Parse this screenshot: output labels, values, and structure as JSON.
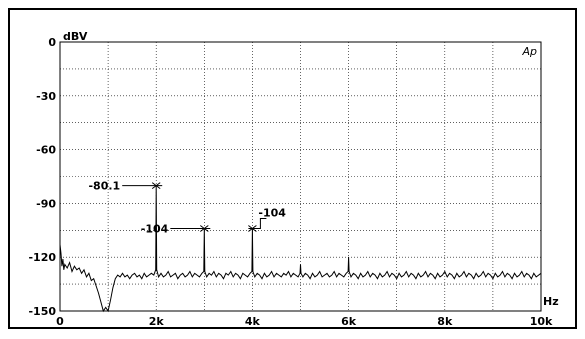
{
  "chart_data": {
    "type": "line",
    "ylabel": "dBV",
    "xlabel": "Hz",
    "logo": "Ap",
    "xlim": [
      0,
      10000
    ],
    "ylim": [
      -150,
      0
    ],
    "grid": true,
    "x_ticks": [
      {
        "value": 0,
        "label": "0"
      },
      {
        "value": 2000,
        "label": "2k"
      },
      {
        "value": 4000,
        "label": "4k"
      },
      {
        "value": 6000,
        "label": "6k"
      },
      {
        "value": 8000,
        "label": "8k"
      },
      {
        "value": 10000,
        "label": "10k"
      }
    ],
    "x_grid_step": 1000,
    "y_ticks": [
      {
        "value": 0,
        "label": "0"
      },
      {
        "value": -30,
        "label": "-30"
      },
      {
        "value": -60,
        "label": "-60"
      },
      {
        "value": -90,
        "label": "-90"
      },
      {
        "value": -120,
        "label": "-120"
      },
      {
        "value": -150,
        "label": "-150"
      }
    ],
    "y_grid_step": 15,
    "annotations": [
      {
        "x": 2000,
        "y": -80.1,
        "label": "-80.1",
        "side": "left"
      },
      {
        "x": 3000,
        "y": -104,
        "label": "-104",
        "side": "left"
      },
      {
        "x": 4000,
        "y": -104,
        "label": "-104",
        "side": "right"
      }
    ],
    "series": [
      {
        "color": "#000000",
        "points": [
          [
            0,
            -113
          ],
          [
            20,
            -118
          ],
          [
            40,
            -125
          ],
          [
            60,
            -121
          ],
          [
            80,
            -127
          ],
          [
            100,
            -124
          ],
          [
            150,
            -126
          ],
          [
            200,
            -123
          ],
          [
            250,
            -128
          ],
          [
            300,
            -125
          ],
          [
            350,
            -127
          ],
          [
            400,
            -126
          ],
          [
            450,
            -129
          ],
          [
            500,
            -127
          ],
          [
            550,
            -131
          ],
          [
            600,
            -129
          ],
          [
            650,
            -133
          ],
          [
            700,
            -132
          ],
          [
            750,
            -136
          ],
          [
            800,
            -140
          ],
          [
            850,
            -145
          ],
          [
            900,
            -150
          ],
          [
            950,
            -148
          ],
          [
            1000,
            -150
          ],
          [
            1050,
            -144
          ],
          [
            1100,
            -137
          ],
          [
            1150,
            -132
          ],
          [
            1200,
            -130
          ],
          [
            1250,
            -131
          ],
          [
            1300,
            -129
          ],
          [
            1350,
            -131
          ],
          [
            1400,
            -130
          ],
          [
            1450,
            -132
          ],
          [
            1500,
            -130
          ],
          [
            1550,
            -129
          ],
          [
            1600,
            -131
          ],
          [
            1650,
            -130
          ],
          [
            1700,
            -132
          ],
          [
            1750,
            -129
          ],
          [
            1800,
            -131
          ],
          [
            1850,
            -130
          ],
          [
            1900,
            -129
          ],
          [
            1950,
            -130
          ],
          [
            1990,
            -127
          ],
          [
            2000,
            -80.1
          ],
          [
            2010,
            -127
          ],
          [
            2050,
            -131
          ],
          [
            2100,
            -129
          ],
          [
            2150,
            -131
          ],
          [
            2200,
            -130
          ],
          [
            2250,
            -128
          ],
          [
            2300,
            -131
          ],
          [
            2350,
            -130
          ],
          [
            2400,
            -129
          ],
          [
            2450,
            -132
          ],
          [
            2500,
            -130
          ],
          [
            2550,
            -129
          ],
          [
            2600,
            -131
          ],
          [
            2650,
            -130
          ],
          [
            2700,
            -128
          ],
          [
            2750,
            -131
          ],
          [
            2800,
            -129
          ],
          [
            2850,
            -130
          ],
          [
            2900,
            -131
          ],
          [
            2950,
            -129
          ],
          [
            2990,
            -128
          ],
          [
            3000,
            -104
          ],
          [
            3010,
            -128
          ],
          [
            3050,
            -131
          ],
          [
            3100,
            -129
          ],
          [
            3150,
            -130
          ],
          [
            3200,
            -128
          ],
          [
            3250,
            -131
          ],
          [
            3300,
            -129
          ],
          [
            3350,
            -130
          ],
          [
            3400,
            -132
          ],
          [
            3450,
            -129
          ],
          [
            3500,
            -130
          ],
          [
            3550,
            -128
          ],
          [
            3600,
            -131
          ],
          [
            3650,
            -129
          ],
          [
            3700,
            -130
          ],
          [
            3750,
            -132
          ],
          [
            3800,
            -129
          ],
          [
            3850,
            -130
          ],
          [
            3900,
            -131
          ],
          [
            3950,
            -129
          ],
          [
            3990,
            -128
          ],
          [
            4000,
            -104
          ],
          [
            4010,
            -128
          ],
          [
            4050,
            -131
          ],
          [
            4100,
            -129
          ],
          [
            4150,
            -130
          ],
          [
            4200,
            -132
          ],
          [
            4250,
            -129
          ],
          [
            4300,
            -131
          ],
          [
            4350,
            -130
          ],
          [
            4400,
            -128
          ],
          [
            4450,
            -131
          ],
          [
            4500,
            -129
          ],
          [
            4550,
            -130
          ],
          [
            4600,
            -131
          ],
          [
            4650,
            -129
          ],
          [
            4700,
            -130
          ],
          [
            4750,
            -128
          ],
          [
            4800,
            -131
          ],
          [
            4850,
            -129
          ],
          [
            4900,
            -130
          ],
          [
            4950,
            -131
          ],
          [
            4990,
            -129
          ],
          [
            5000,
            -124
          ],
          [
            5010,
            -129
          ],
          [
            5050,
            -131
          ],
          [
            5100,
            -129
          ],
          [
            5150,
            -130
          ],
          [
            5200,
            -132
          ],
          [
            5250,
            -129
          ],
          [
            5300,
            -131
          ],
          [
            5350,
            -130
          ],
          [
            5400,
            -128
          ],
          [
            5450,
            -131
          ],
          [
            5500,
            -130
          ],
          [
            5550,
            -129
          ],
          [
            5600,
            -131
          ],
          [
            5650,
            -130
          ],
          [
            5700,
            -128
          ],
          [
            5750,
            -131
          ],
          [
            5800,
            -129
          ],
          [
            5850,
            -130
          ],
          [
            5900,
            -131
          ],
          [
            5950,
            -129
          ],
          [
            5990,
            -128
          ],
          [
            6000,
            -120
          ],
          [
            6010,
            -128
          ],
          [
            6050,
            -131
          ],
          [
            6100,
            -129
          ],
          [
            6150,
            -130
          ],
          [
            6200,
            -132
          ],
          [
            6250,
            -129
          ],
          [
            6300,
            -131
          ],
          [
            6350,
            -130
          ],
          [
            6400,
            -128
          ],
          [
            6450,
            -131
          ],
          [
            6500,
            -129
          ],
          [
            6550,
            -130
          ],
          [
            6600,
            -132
          ],
          [
            6650,
            -129
          ],
          [
            6700,
            -131
          ],
          [
            6750,
            -130
          ],
          [
            6800,
            -128
          ],
          [
            6850,
            -131
          ],
          [
            6900,
            -129
          ],
          [
            6950,
            -130
          ],
          [
            7000,
            -132
          ],
          [
            7050,
            -129
          ],
          [
            7100,
            -131
          ],
          [
            7150,
            -130
          ],
          [
            7200,
            -128
          ],
          [
            7250,
            -131
          ],
          [
            7300,
            -129
          ],
          [
            7350,
            -130
          ],
          [
            7400,
            -132
          ],
          [
            7450,
            -129
          ],
          [
            7500,
            -131
          ],
          [
            7550,
            -130
          ],
          [
            7600,
            -128
          ],
          [
            7650,
            -131
          ],
          [
            7700,
            -129
          ],
          [
            7750,
            -130
          ],
          [
            7800,
            -132
          ],
          [
            7850,
            -129
          ],
          [
            7900,
            -131
          ],
          [
            7950,
            -130
          ],
          [
            8000,
            -128
          ],
          [
            8050,
            -131
          ],
          [
            8100,
            -129
          ],
          [
            8150,
            -130
          ],
          [
            8200,
            -132
          ],
          [
            8250,
            -129
          ],
          [
            8300,
            -131
          ],
          [
            8350,
            -130
          ],
          [
            8400,
            -128
          ],
          [
            8450,
            -131
          ],
          [
            8500,
            -129
          ],
          [
            8550,
            -130
          ],
          [
            8600,
            -132
          ],
          [
            8650,
            -129
          ],
          [
            8700,
            -131
          ],
          [
            8750,
            -130
          ],
          [
            8800,
            -128
          ],
          [
            8850,
            -131
          ],
          [
            8900,
            -129
          ],
          [
            8950,
            -130
          ],
          [
            9000,
            -132
          ],
          [
            9050,
            -129
          ],
          [
            9100,
            -131
          ],
          [
            9150,
            -130
          ],
          [
            9200,
            -128
          ],
          [
            9250,
            -131
          ],
          [
            9300,
            -129
          ],
          [
            9350,
            -130
          ],
          [
            9400,
            -132
          ],
          [
            9450,
            -129
          ],
          [
            9500,
            -131
          ],
          [
            9550,
            -130
          ],
          [
            9600,
            -128
          ],
          [
            9650,
            -131
          ],
          [
            9700,
            -129
          ],
          [
            9750,
            -130
          ],
          [
            9800,
            -132
          ],
          [
            9850,
            -129
          ],
          [
            9900,
            -131
          ],
          [
            9950,
            -130
          ],
          [
            10000,
            -129
          ]
        ]
      }
    ]
  }
}
